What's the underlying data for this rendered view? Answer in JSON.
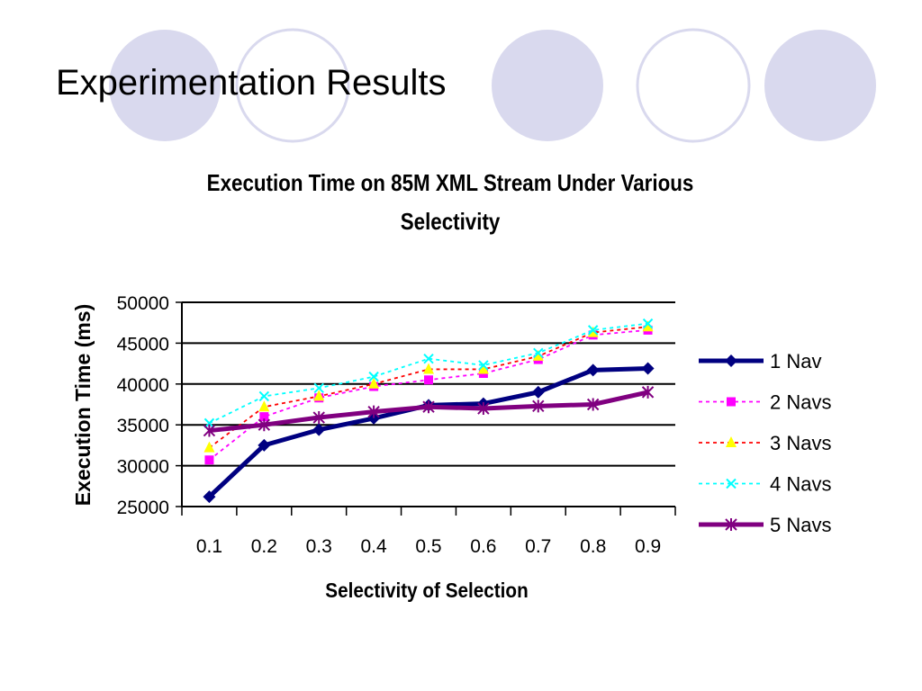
{
  "slide": {
    "title": "Experimentation Results",
    "circle_fill": "#d9d9ee",
    "circle_stroke": "#d9d9ee"
  },
  "chart_data": {
    "type": "line",
    "title_lines": [
      "Execution Time on 85M XML Stream Under Various",
      "Selectivity"
    ],
    "xlabel": "Selectivity of Selection",
    "ylabel": "Execution Time (ms)",
    "categories": [
      "0.1",
      "0.2",
      "0.3",
      "0.4",
      "0.5",
      "0.6",
      "0.7",
      "0.8",
      "0.9"
    ],
    "ylim": [
      25000,
      50000
    ],
    "yticks": [
      25000,
      30000,
      35000,
      40000,
      45000,
      50000
    ],
    "grid": true,
    "legend_position": "right",
    "series": [
      {
        "name": "1 Nav",
        "color": "#000080",
        "marker": "diamond",
        "dashed": false,
        "values": [
          26200,
          32500,
          34400,
          35800,
          37400,
          37600,
          39000,
          41700,
          41900
        ]
      },
      {
        "name": "2 Navs",
        "color": "#ff00ff",
        "marker": "square",
        "dashed": true,
        "values": [
          30700,
          36000,
          38300,
          39700,
          40500,
          41300,
          43000,
          46000,
          46600
        ]
      },
      {
        "name": "3 Navs",
        "color": "#ff0000",
        "marker": "triangle",
        "dashed": true,
        "values": [
          32200,
          37200,
          38500,
          40000,
          41800,
          41800,
          43400,
          46300,
          47000
        ]
      },
      {
        "name": "4 Navs",
        "color": "#00ffff",
        "marker": "x",
        "dashed": true,
        "values": [
          35200,
          38500,
          39500,
          40900,
          43100,
          42300,
          43800,
          46600,
          47400
        ]
      },
      {
        "name": "5 Navs",
        "color": "#800080",
        "marker": "asterisk",
        "dashed": false,
        "values": [
          34300,
          35000,
          35900,
          36600,
          37200,
          37000,
          37300,
          37500,
          39000
        ]
      }
    ]
  }
}
